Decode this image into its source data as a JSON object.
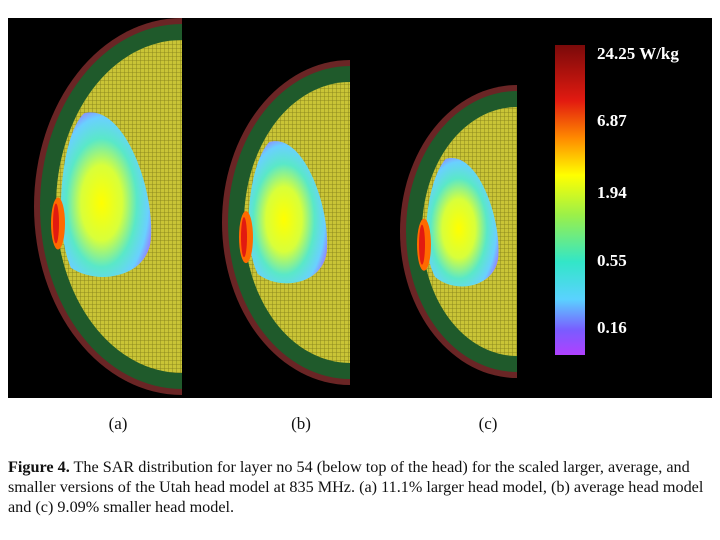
{
  "figure": {
    "panels": [
      {
        "label": "(a)"
      },
      {
        "label": "(b)"
      },
      {
        "label": "(c)"
      }
    ],
    "colorbar": {
      "ticks": [
        "24.25 W/kg",
        "6.87",
        "1.94",
        "0.55",
        "0.16"
      ],
      "colors": [
        "#7a0a0a",
        "#e21a10",
        "#ff8a00",
        "#ffff00",
        "#9af04a",
        "#32e6c8",
        "#5ad2ff",
        "#7a5cff",
        "#c040ff"
      ]
    },
    "colors": {
      "skin_yellow": "#c9c436",
      "outer_green": "#1f5a2b",
      "brown_speckle": "#6a2525"
    }
  },
  "caption": {
    "prefix": "Figure 4.",
    "text": "The SAR distribution for layer no 54 (below top of the head) for the scaled larger, average, and smaller versions of the Utah head model at 835 MHz. (a) 11.1% larger head model, (b) average head model and (c) 9.09% smaller head model."
  }
}
